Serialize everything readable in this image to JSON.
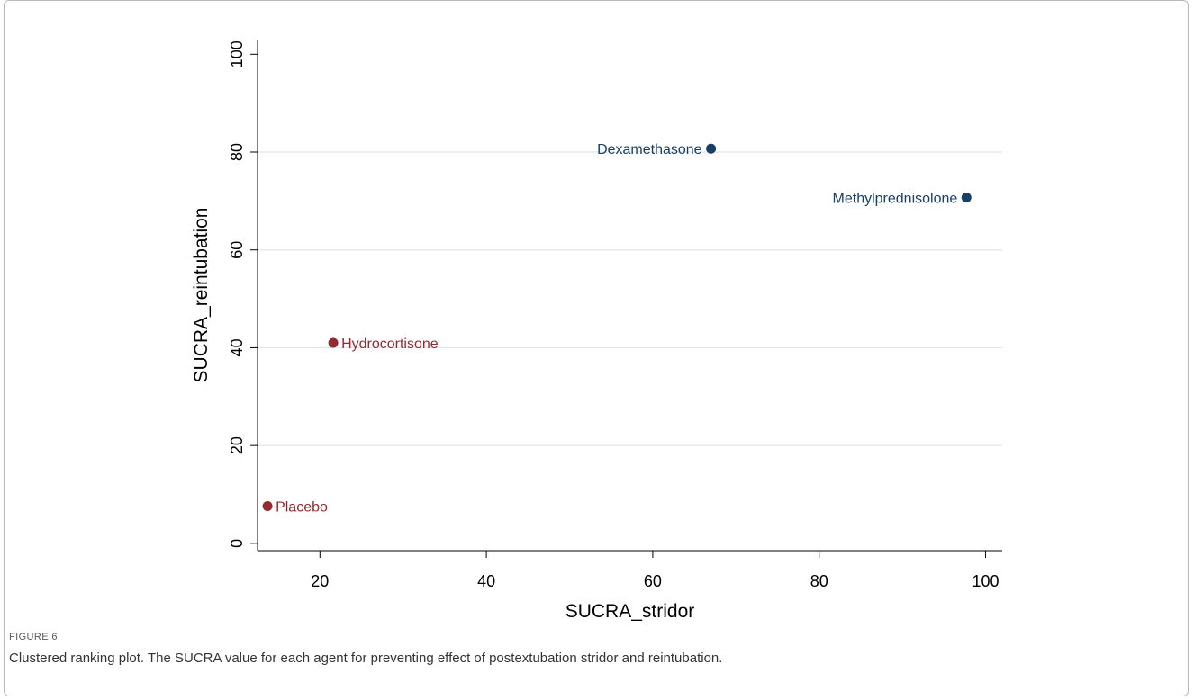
{
  "figure": {
    "label": "FIGURE 6",
    "caption": "Clustered ranking plot. The SUCRA value for each agent for preventing effect of postextubation stridor and reintubation."
  },
  "colors": {
    "cluster_1": "#1b3f63",
    "cluster_2": "#922b31",
    "gridline": "#dce8ea",
    "axis": "#000000"
  },
  "chart_data": {
    "type": "scatter",
    "xlabel": "SUCRA_stridor",
    "ylabel": "SUCRA_reintubation",
    "xlim": [
      12.5,
      102
    ],
    "ylim": [
      -1.5,
      103
    ],
    "xticks": [
      20,
      40,
      60,
      80,
      100
    ],
    "yticks": [
      0,
      20,
      40,
      60,
      80,
      100
    ],
    "grid": {
      "horizontal": true,
      "vertical": false
    },
    "legend": "none",
    "points": [
      {
        "label": "Dexamethasone",
        "x": 67.0,
        "y": 80.7,
        "cluster": "cluster_1",
        "label_side": "left"
      },
      {
        "label": "Methylprednisolone",
        "x": 97.7,
        "y": 70.7,
        "cluster": "cluster_1",
        "label_side": "left"
      },
      {
        "label": "Hydrocortisone",
        "x": 21.6,
        "y": 41.0,
        "cluster": "cluster_2",
        "label_side": "right"
      },
      {
        "label": "Placebo",
        "x": 13.7,
        "y": 7.6,
        "cluster": "cluster_2",
        "label_side": "right"
      }
    ]
  }
}
